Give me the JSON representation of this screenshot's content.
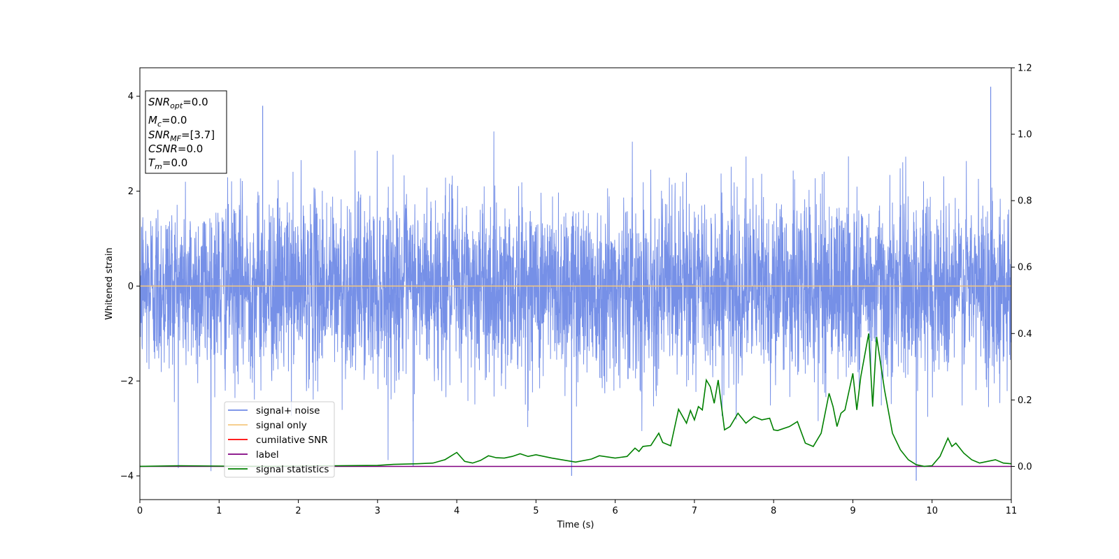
{
  "chart_data": {
    "type": "line",
    "xlabel": "Time (s)",
    "ylabel": "Whitened strain",
    "xlim": [
      0,
      11
    ],
    "ylim": [
      -4.5,
      4.6
    ],
    "y2lim": [
      -0.1,
      1.2
    ],
    "x_ticks": [
      "0",
      "1",
      "2",
      "3",
      "4",
      "5",
      "6",
      "7",
      "8",
      "9",
      "10",
      "11"
    ],
    "y_ticks": [
      "−4",
      "−2",
      "0",
      "2",
      "4"
    ],
    "y2_ticks": [
      "0.0",
      "0.2",
      "0.4",
      "0.6",
      "0.8",
      "1.0",
      "1.2"
    ],
    "grid": false,
    "legend_placement": "lower-left",
    "info_box": {
      "snr_opt": {
        "base": "SNR",
        "sub": "opt",
        "value": "=0.0"
      },
      "mc": {
        "base": "M",
        "sub": "c",
        "value": "=0.0"
      },
      "snr_mf": {
        "base": "SNR",
        "sub": "MF",
        "value": "=[3.7]"
      },
      "csnr": {
        "base": "CSNR",
        "value": "=0.0"
      },
      "tm": {
        "base": "T",
        "sub": "m",
        "value": "=0.0"
      }
    },
    "series": [
      {
        "name": "signal+ noise",
        "axis": "left",
        "color": "#6f8ae6",
        "noise": {
          "sigma": 0.95,
          "duration": 11,
          "peak_max": 4.2,
          "peak_min": -4.1
        }
      },
      {
        "name": "signal only",
        "axis": "left",
        "color": "#f5c77e",
        "values_constant": 0
      },
      {
        "name": "cumilative SNR",
        "axis": "right",
        "color": "#ff0000",
        "values_constant": 0
      },
      {
        "name": "label",
        "axis": "right",
        "color": "#800080",
        "values_constant": 0
      },
      {
        "name": "signal statistics",
        "axis": "right",
        "color": "#008000",
        "x": [
          0,
          0.5,
          1.0,
          1.5,
          2.0,
          2.5,
          3.0,
          3.2,
          3.5,
          3.7,
          3.85,
          4.0,
          4.1,
          4.2,
          4.3,
          4.4,
          4.5,
          4.6,
          4.7,
          4.8,
          4.9,
          5.0,
          5.2,
          5.5,
          5.7,
          5.8,
          6.0,
          6.15,
          6.25,
          6.3,
          6.35,
          6.45,
          6.55,
          6.6,
          6.7,
          6.8,
          6.9,
          6.95,
          7.0,
          7.05,
          7.1,
          7.15,
          7.2,
          7.25,
          7.3,
          7.38,
          7.45,
          7.55,
          7.65,
          7.75,
          7.85,
          7.95,
          8.0,
          8.05,
          8.2,
          8.3,
          8.4,
          8.5,
          8.6,
          8.7,
          8.75,
          8.8,
          8.85,
          8.9,
          9.0,
          9.05,
          9.1,
          9.2,
          9.25,
          9.3,
          9.4,
          9.5,
          9.6,
          9.7,
          9.8,
          9.9,
          10.0,
          10.1,
          10.2,
          10.25,
          10.3,
          10.4,
          10.5,
          10.6,
          10.7,
          10.8,
          10.9,
          11.0
        ],
        "values": [
          0.0,
          0.002,
          0.001,
          0.0,
          0.001,
          0.002,
          0.003,
          0.006,
          0.008,
          0.01,
          0.02,
          0.042,
          0.015,
          0.01,
          0.018,
          0.032,
          0.026,
          0.025,
          0.03,
          0.038,
          0.03,
          0.035,
          0.025,
          0.013,
          0.022,
          0.032,
          0.025,
          0.03,
          0.055,
          0.045,
          0.06,
          0.063,
          0.1,
          0.072,
          0.062,
          0.172,
          0.13,
          0.168,
          0.14,
          0.18,
          0.17,
          0.26,
          0.24,
          0.19,
          0.26,
          0.11,
          0.12,
          0.16,
          0.13,
          0.15,
          0.14,
          0.145,
          0.11,
          0.108,
          0.12,
          0.135,
          0.07,
          0.06,
          0.1,
          0.22,
          0.18,
          0.12,
          0.16,
          0.17,
          0.28,
          0.17,
          0.27,
          0.4,
          0.18,
          0.39,
          0.23,
          0.1,
          0.05,
          0.02,
          0.005,
          0.0,
          0.002,
          0.03,
          0.085,
          0.06,
          0.07,
          0.04,
          0.02,
          0.01,
          0.015,
          0.02,
          0.01,
          0.008
        ]
      }
    ]
  }
}
